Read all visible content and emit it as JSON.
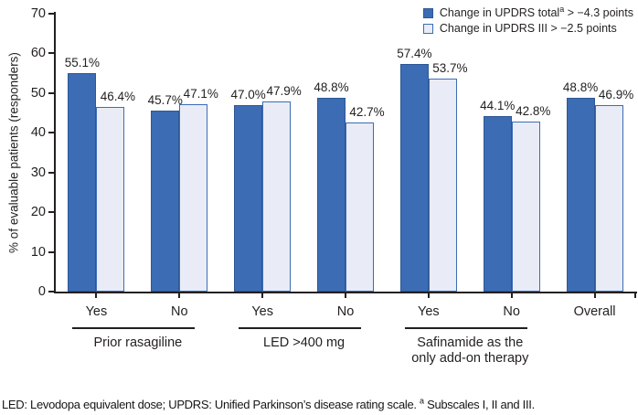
{
  "legend": {
    "items": [
      {
        "id": "updrs-total",
        "prefix": "Change in UPDRS total",
        "sup": "a",
        "suffix": " > −4.3 points"
      },
      {
        "id": "updrs-iii",
        "prefix": "Change in UPDRS III",
        "sup": "",
        "suffix": " > −2.5 points"
      }
    ]
  },
  "chart_data": {
    "type": "bar",
    "title": "",
    "xlabel": "",
    "ylabel": "% of evaluable patients (responders)",
    "ylim": [
      0,
      70
    ],
    "yticks": [
      0,
      10,
      20,
      30,
      40,
      50,
      60,
      70
    ],
    "grid": false,
    "legend_position": "top-right",
    "value_label_suffix": "%",
    "categories": [
      "Yes",
      "No",
      "Yes",
      "No",
      "Yes",
      "No",
      "Overall"
    ],
    "series": [
      {
        "name": "Change in UPDRS totalᵃ > −4.3 points",
        "style": "solid-blue",
        "color": "#3c6cb4",
        "values": [
          55.1,
          45.7,
          47.0,
          48.8,
          57.4,
          44.1,
          48.8
        ]
      },
      {
        "name": "Change in UPDRS III > −2.5 points",
        "style": "light-outline",
        "color": "#e9ecf6",
        "border_color": "#3c6cb4",
        "values": [
          46.4,
          47.1,
          47.9,
          42.7,
          53.7,
          42.8,
          46.9
        ]
      }
    ],
    "groups": [
      {
        "lines": [
          "Prior rasagiline"
        ],
        "from": 0,
        "to": 1
      },
      {
        "lines": [
          "LED >400 mg"
        ],
        "from": 2,
        "to": 3
      },
      {
        "lines": [
          "Safinamide as the",
          "only add-on therapy"
        ],
        "from": 4,
        "to": 5
      }
    ]
  },
  "footnote": {
    "main": "LED: Levodopa equivalent dose; UPDRS: Unified Parkinson’s disease rating scale. ",
    "sup": "a",
    "after": " Subscales I, II and III."
  },
  "colors": {
    "bar_total": "#3c6cb4",
    "bar_total_border": "#2d5894",
    "bar_iii_fill": "#e9ecf6",
    "bar_iii_border": "#3c6cb4",
    "axis": "#231f20",
    "text": "#231f20"
  }
}
